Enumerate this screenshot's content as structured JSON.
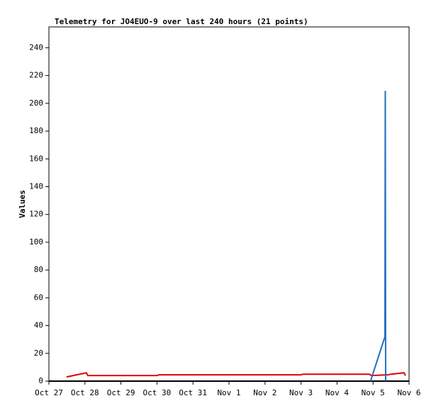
{
  "chart_data": {
    "type": "line",
    "title": "Telemetry for JO4EUO-9 over last 240 hours (21 points)",
    "y_label": "Values",
    "xlim": [
      0,
      10
    ],
    "ylim": [
      0,
      255
    ],
    "xticks": [
      {
        "value": 0,
        "label": "Oct 27"
      },
      {
        "value": 1,
        "label": "Oct 28"
      },
      {
        "value": 2,
        "label": "Oct 29"
      },
      {
        "value": 3,
        "label": "Oct 30"
      },
      {
        "value": 4,
        "label": "Oct 31"
      },
      {
        "value": 5,
        "label": "Nov 1"
      },
      {
        "value": 6,
        "label": "Nov 2"
      },
      {
        "value": 7,
        "label": "Nov 3"
      },
      {
        "value": 8,
        "label": "Nov 4"
      },
      {
        "value": 9,
        "label": "Nov 5"
      },
      {
        "value": 10,
        "label": "Nov 6"
      }
    ],
    "yticks": [
      0,
      20,
      40,
      60,
      80,
      100,
      120,
      140,
      160,
      180,
      200,
      220,
      240
    ],
    "series": [
      {
        "color": "#e00000",
        "x": [
          0.49,
          1.04,
          1.08,
          3.0,
          3.05,
          7.0,
          7.05,
          8.9,
          8.95,
          9.4,
          9.5,
          9.86,
          9.9
        ],
        "values": [
          3,
          6,
          4,
          4,
          4.5,
          4.5,
          5,
          5,
          4,
          4.5,
          5,
          6,
          4
        ]
      },
      {
        "color": "#1f6fc0",
        "x": [
          8.93,
          9.33,
          9.34,
          9.35
        ],
        "values": [
          0,
          32,
          209,
          0
        ]
      }
    ]
  }
}
